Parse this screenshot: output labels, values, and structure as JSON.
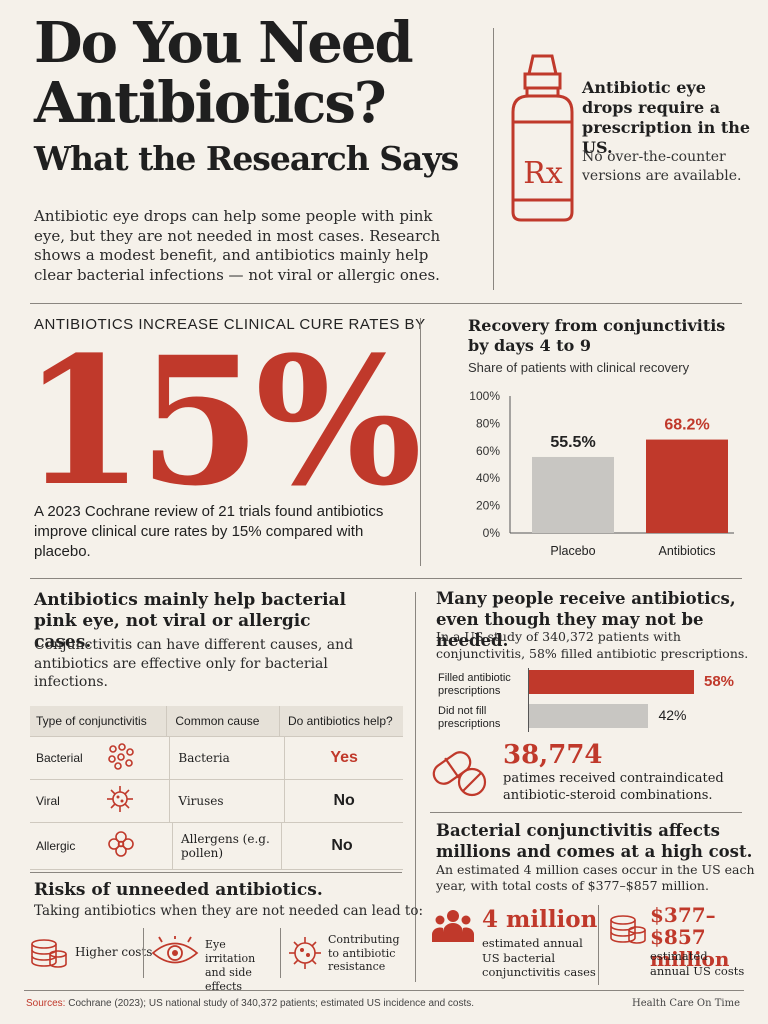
{
  "header": {
    "title_line1": "Do You Need",
    "title_line2": "Antibiotics?",
    "subtitle": "What the Research Says",
    "intro": "Antibiotic eye drops can help some people with pink eye, but they are not needed in most cases. Research shows a modest benefit, and antibiotics mainly help clear bacterial infections — not viral or allergic ones."
  },
  "prescription": {
    "bottle_label": "Rx",
    "heading": "Antibiotic eye drops require a prescription in the US.",
    "note": "No over-the-counter versions are available."
  },
  "cure_rate": {
    "kicker": "ANTIBIOTICS INCREASE CLINICAL CURE RATES BY",
    "big_number": "15%",
    "text": "A 2023 Cochrane review of 21 trials found antibiotics improve clinical cure rates by 15% compared with placebo."
  },
  "chart_data": {
    "type": "bar",
    "title": "Recovery from conjunctivitis by days 4 to 9",
    "subtitle": "Share of patients with clinical recovery",
    "categories": [
      "Placebo",
      "Antibiotics"
    ],
    "values": [
      55.5,
      68.2
    ],
    "value_labels": [
      "55.5%",
      "68.2%"
    ],
    "colors": [
      "#c8c6c2",
      "#c0392b"
    ],
    "yticks": [
      "100%",
      "80%",
      "60%",
      "40%",
      "20%",
      "0%"
    ],
    "ylim": [
      0,
      100
    ],
    "grid": false
  },
  "bacterial": {
    "heading": "Antibiotics mainly help bacterial pink eye, not viral or allergic cases.",
    "text": "Conjunctivitis can have different causes, and antibiotics are effective only for bacterial infections.",
    "table_headers": [
      "Type of conjunctivitis",
      "Common cause",
      "Do antibiotics help?"
    ],
    "rows": [
      {
        "type": "Bacterial",
        "icon": "bacteria-icon",
        "cause": "Bacteria",
        "help": "Yes"
      },
      {
        "type": "Viral",
        "icon": "virus-icon",
        "cause": "Viruses",
        "help": "No"
      },
      {
        "type": "Allergic",
        "icon": "flower-icon",
        "cause": "Allergens (e.g. pollen)",
        "help": "No"
      }
    ]
  },
  "prescriptions": {
    "heading": "Many people receive antibiotics, even though they may not be needed.",
    "text": "In a US study of 340,372 patients with conjunctivitis, 58% filled antibiotic prescriptions.",
    "bars": [
      {
        "label": "Filled antibiotic prescriptions",
        "value": 58,
        "value_label": "58%",
        "color": "#c0392b"
      },
      {
        "label": "Did not fill prescriptions",
        "value": 42,
        "value_label": "42%",
        "color": "#c8c6c2"
      }
    ],
    "contra_number": "38,774",
    "contra_text": "patimes received contraindicated antibiotic-steroid combinations."
  },
  "risks": {
    "heading": "Risks of unneeded antibiotics.",
    "text": "Taking antibiotics when they are not needed can lead to:",
    "items": [
      {
        "icon": "coins-icon",
        "label": "Higher costs"
      },
      {
        "icon": "eye-icon",
        "label": "Eye irritation and side effects"
      },
      {
        "icon": "germ-icon",
        "label": "Contributing to antibiotic resistance"
      }
    ]
  },
  "costs": {
    "heading": "Bacterial conjunctivitis affects millions and comes at a high cost.",
    "text": "An estimated 4 million cases occur in the US each year, with total costs of $377–$857 million.",
    "cases_number": "4 million",
    "cases_label": "estimated annual US bacterial conjunctivitis cases",
    "cost_number_line1": "$377–$857",
    "cost_number_line2": "million",
    "cost_label": "estimated annual US costs"
  },
  "footer": {
    "sources_label": "Sources:",
    "sources_text": "Cochrane (2023); US national study of 340,372 patients; estimated US incidence and costs.",
    "brand": "Health Care On Time"
  }
}
